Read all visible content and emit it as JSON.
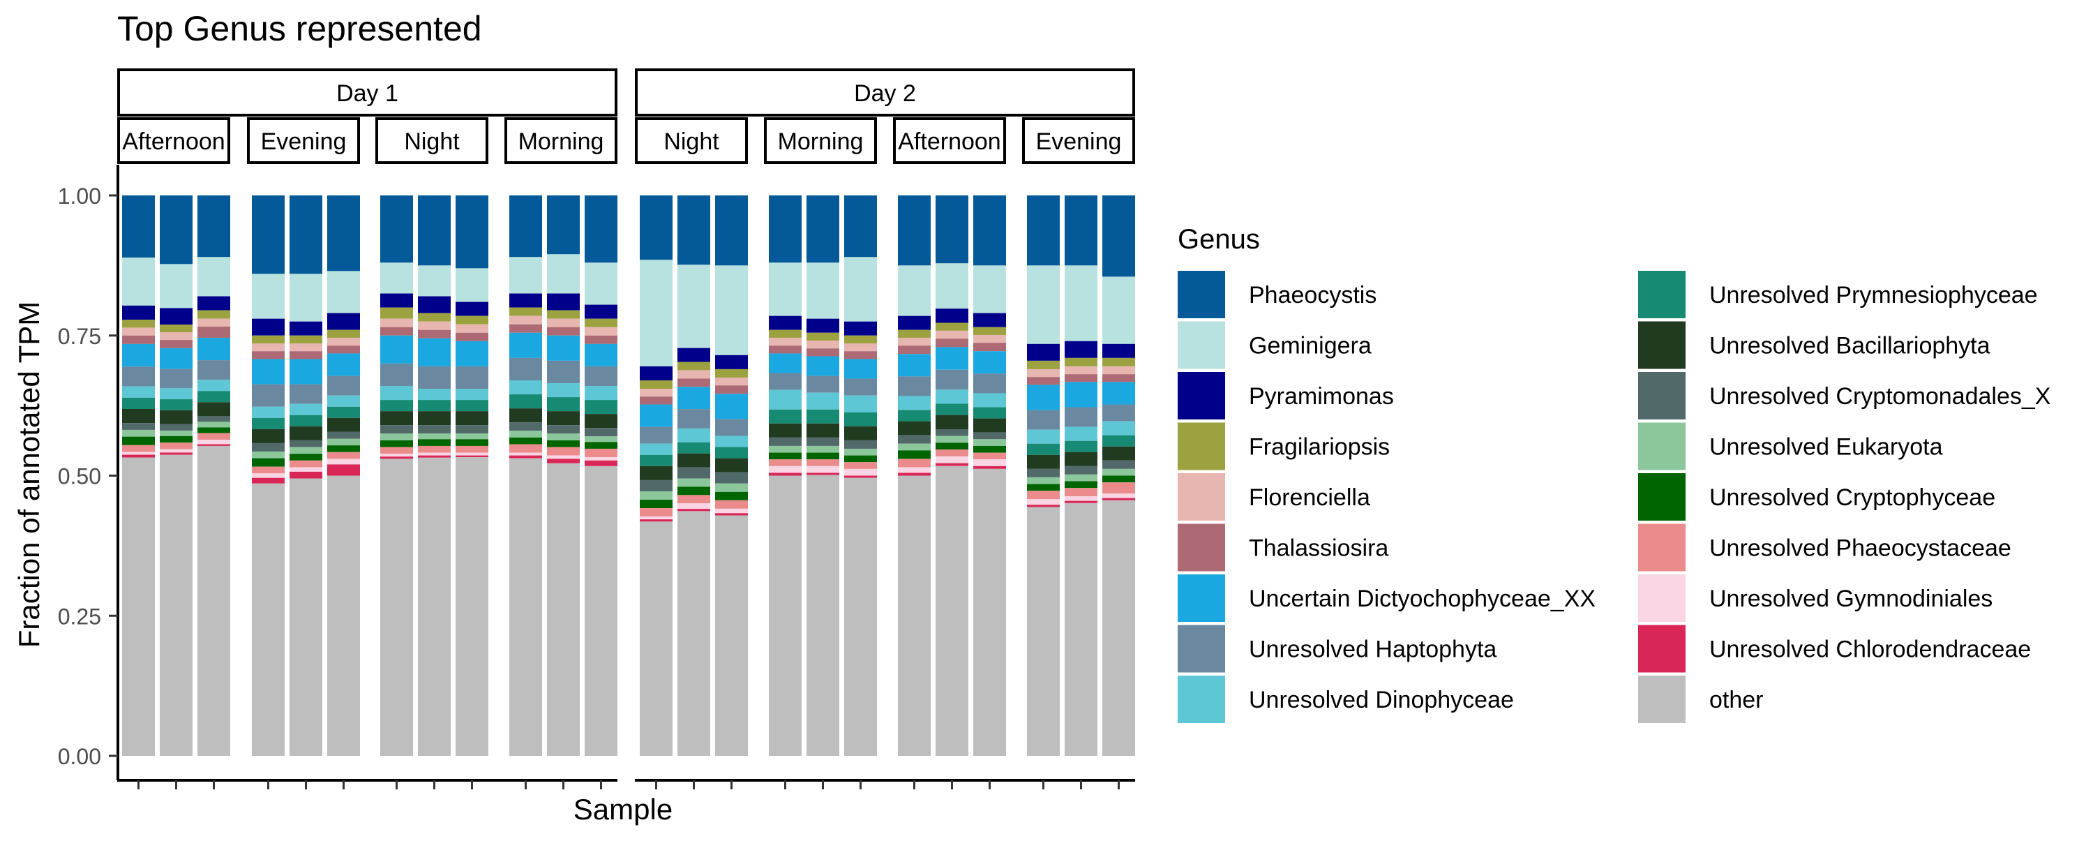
{
  "chart_data": {
    "type": "bar",
    "stacked": true,
    "title": "Top Genus represented",
    "xlabel": "Sample",
    "ylabel": "Fraction of annotated TPM",
    "ylim": [
      0,
      1
    ],
    "yticks": [
      "0.00",
      "0.25",
      "0.50",
      "0.75",
      "1.00"
    ],
    "grid": false,
    "legend": {
      "title": "Genus",
      "placement": "right"
    },
    "series": [
      {
        "name": "Phaeocystis",
        "color": "#045A98"
      },
      {
        "name": "Geminigera",
        "color": "#B8E2DF"
      },
      {
        "name": "Pyramimonas",
        "color": "#00008B"
      },
      {
        "name": "Fragilariopsis",
        "color": "#9BA23F"
      },
      {
        "name": "Florenciella",
        "color": "#E8B6B0"
      },
      {
        "name": "Thalassiosira",
        "color": "#AD6A74"
      },
      {
        "name": "Uncertain Dictyochophyceae_XX",
        "color": "#1BA8E1"
      },
      {
        "name": "Unresolved Haptophyta",
        "color": "#6A89A0"
      },
      {
        "name": "Unresolved Dinophyceae",
        "color": "#5EC7D6"
      },
      {
        "name": "Unresolved Prymnesiophyceae",
        "color": "#168A73"
      },
      {
        "name": "Unresolved Bacillariophyta",
        "color": "#213B21"
      },
      {
        "name": "Unresolved Cryptomonadales_X",
        "color": "#52696A"
      },
      {
        "name": "Unresolved Eukaryota",
        "color": "#8CC79C"
      },
      {
        "name": "Unresolved Cryptophyceae",
        "color": "#006400"
      },
      {
        "name": "Unresolved Phaeocystaceae",
        "color": "#EB8B8B"
      },
      {
        "name": "Unresolved Gymnodiniales",
        "color": "#FAD6E4"
      },
      {
        "name": "Unresolved Chlorodendraceae",
        "color": "#D92656"
      },
      {
        "name": "other",
        "color": "#BEBEBE"
      }
    ],
    "facets": [
      {
        "day": "Day 1",
        "panels": [
          {
            "label": "Afternoon",
            "samples": [
              [
                0.11,
                0.085,
                0.025,
                0.014,
                0.014,
                0.015,
                0.04,
                0.035,
                0.02,
                0.02,
                0.025,
                0.012,
                0.012,
                0.015,
                0.012,
                0.005,
                0.005,
                0.528
              ],
              [
                0.125,
                0.08,
                0.03,
                0.014,
                0.014,
                0.015,
                0.038,
                0.035,
                0.02,
                0.02,
                0.025,
                0.012,
                0.01,
                0.012,
                0.012,
                0.006,
                0.004,
                0.548
              ],
              [
                0.11,
                0.07,
                0.025,
                0.015,
                0.014,
                0.02,
                0.04,
                0.035,
                0.02,
                0.02,
                0.025,
                0.01,
                0.01,
                0.01,
                0.012,
                0.008,
                0.003,
                0.553
              ]
            ]
          },
          {
            "label": "Evening",
            "samples": [
              [
                0.14,
                0.08,
                0.03,
                0.014,
                0.014,
                0.014,
                0.045,
                0.04,
                0.02,
                0.02,
                0.025,
                0.015,
                0.012,
                0.015,
                0.012,
                0.008,
                0.01,
                0.486
              ],
              [
                0.14,
                0.085,
                0.025,
                0.014,
                0.014,
                0.014,
                0.045,
                0.035,
                0.02,
                0.02,
                0.025,
                0.012,
                0.012,
                0.012,
                0.012,
                0.008,
                0.012,
                0.495
              ],
              [
                0.135,
                0.075,
                0.03,
                0.014,
                0.014,
                0.014,
                0.04,
                0.035,
                0.02,
                0.02,
                0.025,
                0.012,
                0.012,
                0.012,
                0.012,
                0.01,
                0.02,
                0.5
              ]
            ]
          },
          {
            "label": "Night",
            "samples": [
              [
                0.12,
                0.055,
                0.025,
                0.02,
                0.015,
                0.015,
                0.05,
                0.04,
                0.025,
                0.02,
                0.025,
                0.015,
                0.012,
                0.012,
                0.012,
                0.005,
                0.004,
                0.53
              ],
              [
                0.125,
                0.055,
                0.03,
                0.015,
                0.015,
                0.015,
                0.05,
                0.04,
                0.02,
                0.02,
                0.025,
                0.015,
                0.01,
                0.012,
                0.012,
                0.005,
                0.004,
                0.532
              ],
              [
                0.13,
                0.06,
                0.025,
                0.015,
                0.015,
                0.015,
                0.045,
                0.04,
                0.02,
                0.02,
                0.025,
                0.015,
                0.01,
                0.012,
                0.012,
                0.005,
                0.003,
                0.533
              ]
            ]
          },
          {
            "label": "Morning",
            "samples": [
              [
                0.11,
                0.065,
                0.025,
                0.015,
                0.015,
                0.015,
                0.045,
                0.04,
                0.025,
                0.025,
                0.025,
                0.015,
                0.012,
                0.012,
                0.015,
                0.005,
                0.005,
                0.531
              ],
              [
                0.105,
                0.07,
                0.03,
                0.015,
                0.015,
                0.015,
                0.045,
                0.04,
                0.025,
                0.025,
                0.025,
                0.015,
                0.012,
                0.012,
                0.015,
                0.006,
                0.008,
                0.522
              ],
              [
                0.12,
                0.075,
                0.025,
                0.015,
                0.015,
                0.015,
                0.04,
                0.035,
                0.025,
                0.025,
                0.025,
                0.015,
                0.01,
                0.012,
                0.015,
                0.006,
                0.01,
                0.517
              ]
            ]
          }
        ]
      },
      {
        "day": "Day 2",
        "panels": [
          {
            "label": "Night",
            "samples": [
              [
                0.115,
                0.19,
                0.025,
                0.015,
                0.014,
                0.014,
                0.04,
                0.03,
                0.02,
                0.02,
                0.025,
                0.02,
                0.015,
                0.015,
                0.015,
                0.005,
                0.004,
                0.418
              ],
              [
                0.125,
                0.15,
                0.025,
                0.015,
                0.015,
                0.015,
                0.04,
                0.035,
                0.025,
                0.02,
                0.025,
                0.02,
                0.015,
                0.015,
                0.015,
                0.01,
                0.004,
                0.441
              ],
              [
                0.125,
                0.16,
                0.025,
                0.015,
                0.014,
                0.015,
                0.045,
                0.03,
                0.02,
                0.02,
                0.025,
                0.02,
                0.015,
                0.015,
                0.015,
                0.008,
                0.004,
                0.429
              ]
            ]
          },
          {
            "label": "Morning",
            "samples": [
              [
                0.12,
                0.095,
                0.025,
                0.014,
                0.014,
                0.014,
                0.035,
                0.03,
                0.035,
                0.025,
                0.025,
                0.015,
                0.012,
                0.012,
                0.012,
                0.012,
                0.005,
                0.5
              ],
              [
                0.12,
                0.1,
                0.025,
                0.014,
                0.014,
                0.014,
                0.035,
                0.03,
                0.03,
                0.025,
                0.025,
                0.015,
                0.012,
                0.012,
                0.012,
                0.012,
                0.004,
                0.501
              ],
              [
                0.11,
                0.115,
                0.025,
                0.014,
                0.014,
                0.014,
                0.035,
                0.03,
                0.03,
                0.025,
                0.025,
                0.015,
                0.012,
                0.012,
                0.012,
                0.012,
                0.004,
                0.496
              ]
            ]
          },
          {
            "label": "Afternoon",
            "samples": [
              [
                0.125,
                0.09,
                0.025,
                0.014,
                0.014,
                0.015,
                0.04,
                0.035,
                0.025,
                0.02,
                0.025,
                0.015,
                0.012,
                0.015,
                0.015,
                0.01,
                0.005,
                0.5
              ],
              [
                0.12,
                0.08,
                0.025,
                0.014,
                0.014,
                0.015,
                0.04,
                0.035,
                0.025,
                0.02,
                0.025,
                0.012,
                0.012,
                0.012,
                0.012,
                0.012,
                0.005,
                0.512
              ],
              [
                0.125,
                0.085,
                0.025,
                0.014,
                0.014,
                0.015,
                0.04,
                0.035,
                0.025,
                0.02,
                0.025,
                0.012,
                0.012,
                0.012,
                0.012,
                0.012,
                0.005,
                0.512
              ]
            ]
          },
          {
            "label": "Evening",
            "samples": [
              [
                0.125,
                0.14,
                0.03,
                0.015,
                0.014,
                0.014,
                0.045,
                0.035,
                0.025,
                0.02,
                0.025,
                0.015,
                0.012,
                0.012,
                0.015,
                0.01,
                0.004,
                0.444
              ],
              [
                0.125,
                0.135,
                0.03,
                0.015,
                0.014,
                0.014,
                0.045,
                0.035,
                0.025,
                0.02,
                0.025,
                0.015,
                0.012,
                0.012,
                0.015,
                0.008,
                0.004,
                0.451
              ],
              [
                0.145,
                0.12,
                0.025,
                0.015,
                0.014,
                0.014,
                0.04,
                0.03,
                0.025,
                0.02,
                0.025,
                0.015,
                0.012,
                0.012,
                0.02,
                0.008,
                0.004,
                0.456
              ]
            ]
          }
        ]
      }
    ]
  }
}
